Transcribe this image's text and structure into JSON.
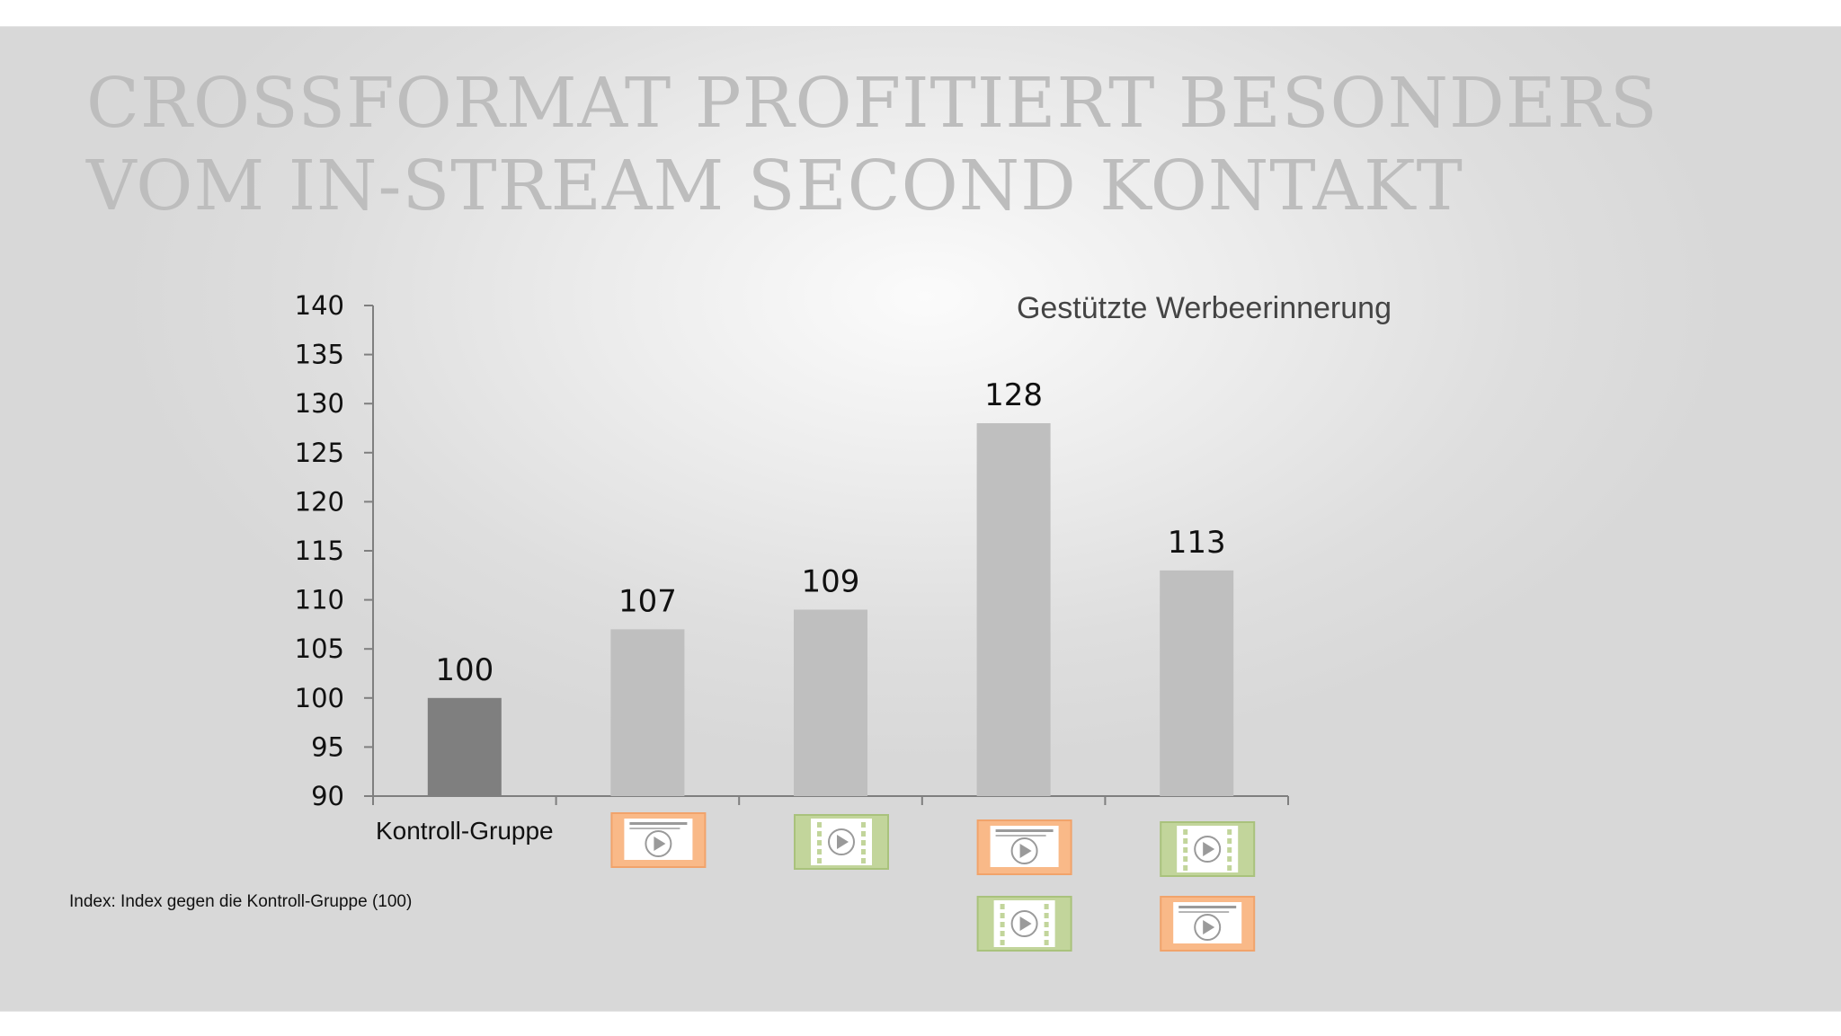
{
  "slide": {
    "title_lines": [
      "CROSSFORMAT PROFITIERT BESONDERS",
      "VOM IN-STREAM SECOND KONTAKT"
    ],
    "footnote": "Index: Index gegen die Kontroll-Gruppe (100)"
  },
  "colors": {
    "control_bar": "#7f7f7f",
    "bar": "#bfbfbf",
    "display_icon": "#f9b988",
    "video_icon": "#c2d59b"
  },
  "chart_data": {
    "type": "bar",
    "title": "Gestützte Werbeerinnerung",
    "categories": [
      "Kontroll-Gruppe",
      "",
      "",
      "",
      ""
    ],
    "category_icons": [
      [],
      [
        "display-ad-icon"
      ],
      [
        "video-ad-icon"
      ],
      [
        "display-ad-icon",
        "video-ad-icon"
      ],
      [
        "video-ad-icon",
        "display-ad-icon"
      ]
    ],
    "values": [
      100,
      107,
      109,
      128,
      113
    ],
    "data_labels": [
      "100",
      "107",
      "109",
      "128",
      "113"
    ],
    "ylim": [
      90,
      140
    ],
    "yticks": [
      90,
      95,
      100,
      105,
      110,
      115,
      120,
      125,
      130,
      135,
      140
    ],
    "grid": false,
    "xlabel": "",
    "ylabel": ""
  }
}
